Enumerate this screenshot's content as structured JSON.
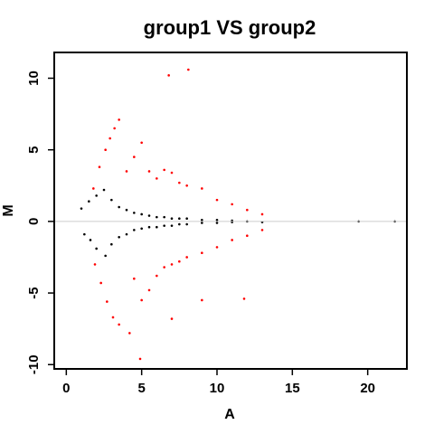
{
  "chart_data": {
    "type": "scatter",
    "title": "group1 VS group2",
    "xlabel": "A",
    "ylabel": "M",
    "xlim": [
      -0.8,
      22.6
    ],
    "ylim": [
      -10.3,
      11.8
    ],
    "x_ticks": [
      0,
      5,
      10,
      15,
      20
    ],
    "y_ticks": [
      -10,
      -5,
      0,
      5,
      10
    ],
    "reference_line": {
      "y": 0,
      "color": "#cccccc"
    },
    "grid": false,
    "legend": "none",
    "series": [
      {
        "color": "#000000",
        "density": "dense",
        "points": [
          [
            1.0,
            0.9
          ],
          [
            1.2,
            -0.9
          ],
          [
            1.5,
            1.4
          ],
          [
            1.6,
            -1.3
          ],
          [
            2.0,
            1.8
          ],
          [
            2.0,
            -1.9
          ],
          [
            2.5,
            2.2
          ],
          [
            2.6,
            -2.4
          ],
          [
            3.0,
            1.5
          ],
          [
            3.0,
            -1.6
          ],
          [
            3.5,
            1.0
          ],
          [
            3.5,
            -1.1
          ],
          [
            4.0,
            0.8
          ],
          [
            4.0,
            -0.9
          ],
          [
            4.5,
            0.6
          ],
          [
            4.5,
            -0.6
          ],
          [
            5.0,
            0.5
          ],
          [
            5.0,
            -0.5
          ],
          [
            5.5,
            0.4
          ],
          [
            5.5,
            -0.4
          ],
          [
            6.0,
            0.3
          ],
          [
            6.0,
            -0.4
          ],
          [
            6.5,
            0.3
          ],
          [
            6.5,
            -0.3
          ],
          [
            7.0,
            0.2
          ],
          [
            7.0,
            -0.3
          ],
          [
            7.5,
            0.2
          ],
          [
            7.5,
            -0.2
          ],
          [
            8.0,
            0.2
          ],
          [
            8.0,
            -0.2
          ],
          [
            9.0,
            0.1
          ],
          [
            9.0,
            -0.1
          ],
          [
            10.0,
            0.1
          ],
          [
            10.0,
            -0.1
          ],
          [
            11.0,
            0.05
          ],
          [
            11.0,
            -0.05
          ],
          [
            12.0,
            0.0
          ],
          [
            13.0,
            -0.05
          ],
          [
            19.4,
            0.0
          ],
          [
            21.8,
            0.0
          ]
        ]
      },
      {
        "color": "#ff0000",
        "density": "scattered",
        "points": [
          [
            1.8,
            2.3
          ],
          [
            2.2,
            3.8
          ],
          [
            2.6,
            5.0
          ],
          [
            2.9,
            5.8
          ],
          [
            3.2,
            6.5
          ],
          [
            3.5,
            7.1
          ],
          [
            1.9,
            -3.0
          ],
          [
            2.3,
            -4.3
          ],
          [
            2.7,
            -5.6
          ],
          [
            3.1,
            -6.7
          ],
          [
            3.5,
            -7.2
          ],
          [
            4.2,
            -7.8
          ],
          [
            4.0,
            3.5
          ],
          [
            4.5,
            4.5
          ],
          [
            5.0,
            5.5
          ],
          [
            5.5,
            3.5
          ],
          [
            6.0,
            3.0
          ],
          [
            6.5,
            3.6
          ],
          [
            7.0,
            3.4
          ],
          [
            7.5,
            2.7
          ],
          [
            8.0,
            2.5
          ],
          [
            9.0,
            2.3
          ],
          [
            10.0,
            1.5
          ],
          [
            11.0,
            1.2
          ],
          [
            12.0,
            0.8
          ],
          [
            13.0,
            0.5
          ],
          [
            4.5,
            -4.0
          ],
          [
            5.0,
            -5.5
          ],
          [
            5.5,
            -4.8
          ],
          [
            6.0,
            -3.8
          ],
          [
            6.5,
            -3.2
          ],
          [
            7.0,
            -3.0
          ],
          [
            7.5,
            -2.8
          ],
          [
            8.0,
            -2.5
          ],
          [
            9.0,
            -2.2
          ],
          [
            10.0,
            -1.8
          ],
          [
            11.0,
            -1.3
          ],
          [
            12.0,
            -1.0
          ],
          [
            13.0,
            -0.6
          ],
          [
            4.9,
            -9.6
          ],
          [
            6.8,
            10.2
          ],
          [
            8.1,
            10.6
          ],
          [
            7.0,
            -6.8
          ],
          [
            9.0,
            -5.5
          ],
          [
            11.8,
            -5.4
          ]
        ]
      }
    ]
  }
}
